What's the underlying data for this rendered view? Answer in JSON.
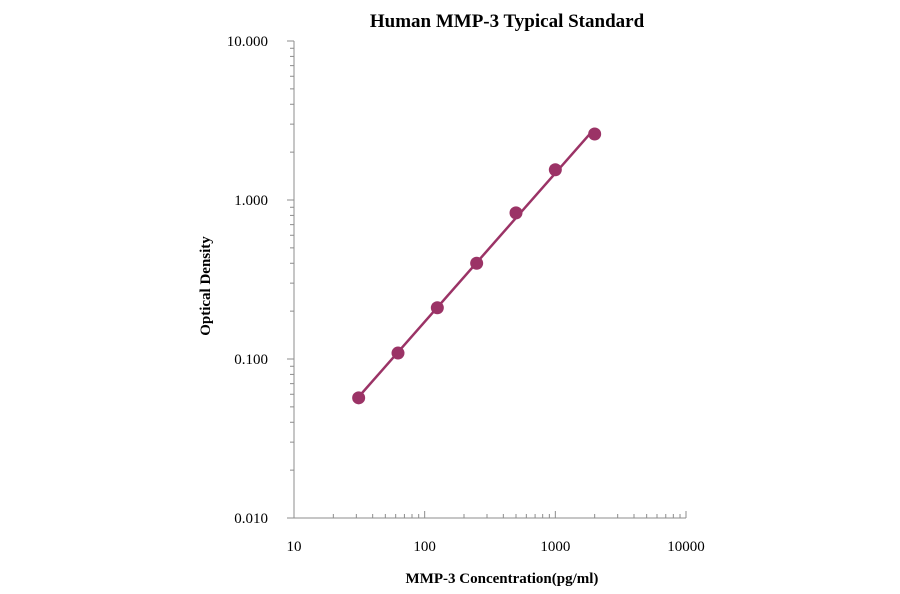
{
  "chart_data": {
    "type": "scatter",
    "title": "Human  MMP-3 Typical Standard",
    "xlabel": "MMP-3  Concentration(pg/ml)",
    "ylabel": "Optical  Density",
    "xscale": "log",
    "yscale": "log",
    "xlim": [
      10,
      10000
    ],
    "ylim": [
      0.01,
      10
    ],
    "xticks": [
      "10",
      "100",
      "1000",
      "10000"
    ],
    "yticks": [
      "10.000",
      "1.000",
      "0.100",
      "0.010"
    ],
    "grid": false,
    "series": [
      {
        "x": [
          31.25,
          62.5,
          125,
          250,
          500,
          1000,
          2000
        ],
        "y": [
          0.057,
          0.109,
          0.21,
          0.4,
          0.83,
          1.55,
          2.6
        ],
        "color": "#9b3366",
        "marker": "circle",
        "line": "fit"
      }
    ]
  }
}
